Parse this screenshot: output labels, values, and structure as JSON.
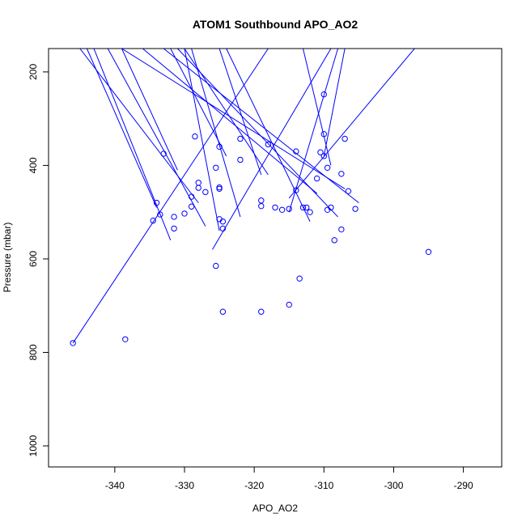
{
  "chart_data": {
    "type": "line",
    "title": "ATOM1 Southbound APO_AO2",
    "xlabel": "APO_AO2",
    "ylabel": "Pressure (mbar)",
    "xlim": [
      -349.5,
      -284.5
    ],
    "ylim": [
      1045,
      150
    ],
    "y_reversed": true,
    "x_ticks": [
      -340,
      -330,
      -320,
      -310,
      -300,
      -290
    ],
    "x_tick_labels": [
      "-340",
      "-330",
      "-320",
      "-310",
      "-300",
      "-290"
    ],
    "y_ticks": [
      200,
      400,
      600,
      800,
      1000
    ],
    "y_tick_labels": [
      "200",
      "400",
      "600",
      "800",
      "1000"
    ],
    "grid": false,
    "series": [
      {
        "color": "#0000ff",
        "x": [
          -343,
          -332,
          -345,
          -328,
          -341,
          -327,
          -344,
          -334,
          -329,
          -322,
          -330,
          -318,
          -336,
          -311,
          -331,
          -308,
          -333,
          -305,
          -339,
          -307,
          -339,
          -331,
          -324,
          -312,
          -318,
          -346,
          -297,
          -315,
          -307,
          -310,
          -309,
          -326,
          -313,
          -309,
          -330,
          -325,
          -332,
          -324,
          -308,
          -315,
          -325,
          -319
        ],
        "y": [
          150,
          560,
          150,
          480,
          150,
          530,
          150,
          490,
          150,
          510,
          150,
          420,
          150,
          460,
          150,
          510,
          150,
          480,
          150,
          450,
          150,
          410,
          150,
          520,
          150,
          780,
          150,
          470,
          150,
          380,
          150,
          580,
          150,
          400,
          150,
          540,
          150,
          380,
          150,
          500,
          150,
          420
        ],
        "markers": [
          [
            -338.5,
            772
          ],
          [
            -334.5,
            518
          ],
          [
            -333.5,
            505
          ],
          [
            -334,
            480
          ],
          [
            -333,
            375
          ],
          [
            -331.5,
            510
          ],
          [
            -331.5,
            535
          ],
          [
            -330,
            503
          ],
          [
            -329,
            488
          ],
          [
            -329,
            467
          ],
          [
            -328.5,
            338
          ],
          [
            -328,
            437
          ],
          [
            -328,
            448
          ],
          [
            -327,
            457
          ],
          [
            -325.5,
            405
          ],
          [
            -325,
            360
          ],
          [
            -325,
            447
          ],
          [
            -325,
            450
          ],
          [
            -325,
            515
          ],
          [
            -324.5,
            535
          ],
          [
            -324.5,
            520
          ],
          [
            -324.5,
            713
          ],
          [
            -325.5,
            615
          ],
          [
            -322,
            343
          ],
          [
            -322,
            388
          ],
          [
            -319,
            713
          ],
          [
            -319,
            475
          ],
          [
            -319,
            487
          ],
          [
            -318,
            355
          ],
          [
            -317,
            490
          ],
          [
            -316,
            495
          ],
          [
            -315,
            493
          ],
          [
            -315,
            698
          ],
          [
            -314,
            370
          ],
          [
            -314,
            453
          ],
          [
            -313.5,
            642
          ],
          [
            -313,
            490
          ],
          [
            -312.5,
            490
          ],
          [
            -312,
            500
          ],
          [
            -311,
            428
          ],
          [
            -310.5,
            372
          ],
          [
            -310,
            333
          ],
          [
            -310,
            248
          ],
          [
            -310,
            380
          ],
          [
            -309.5,
            495
          ],
          [
            -309.5,
            405
          ],
          [
            -309,
            490
          ],
          [
            -308.5,
            560
          ],
          [
            -307.5,
            418
          ],
          [
            -307.5,
            537
          ],
          [
            -307,
            343
          ],
          [
            -306.5,
            455
          ],
          [
            -305.5,
            493
          ],
          [
            -346,
            780
          ],
          [
            -295,
            585
          ]
        ]
      }
    ]
  }
}
